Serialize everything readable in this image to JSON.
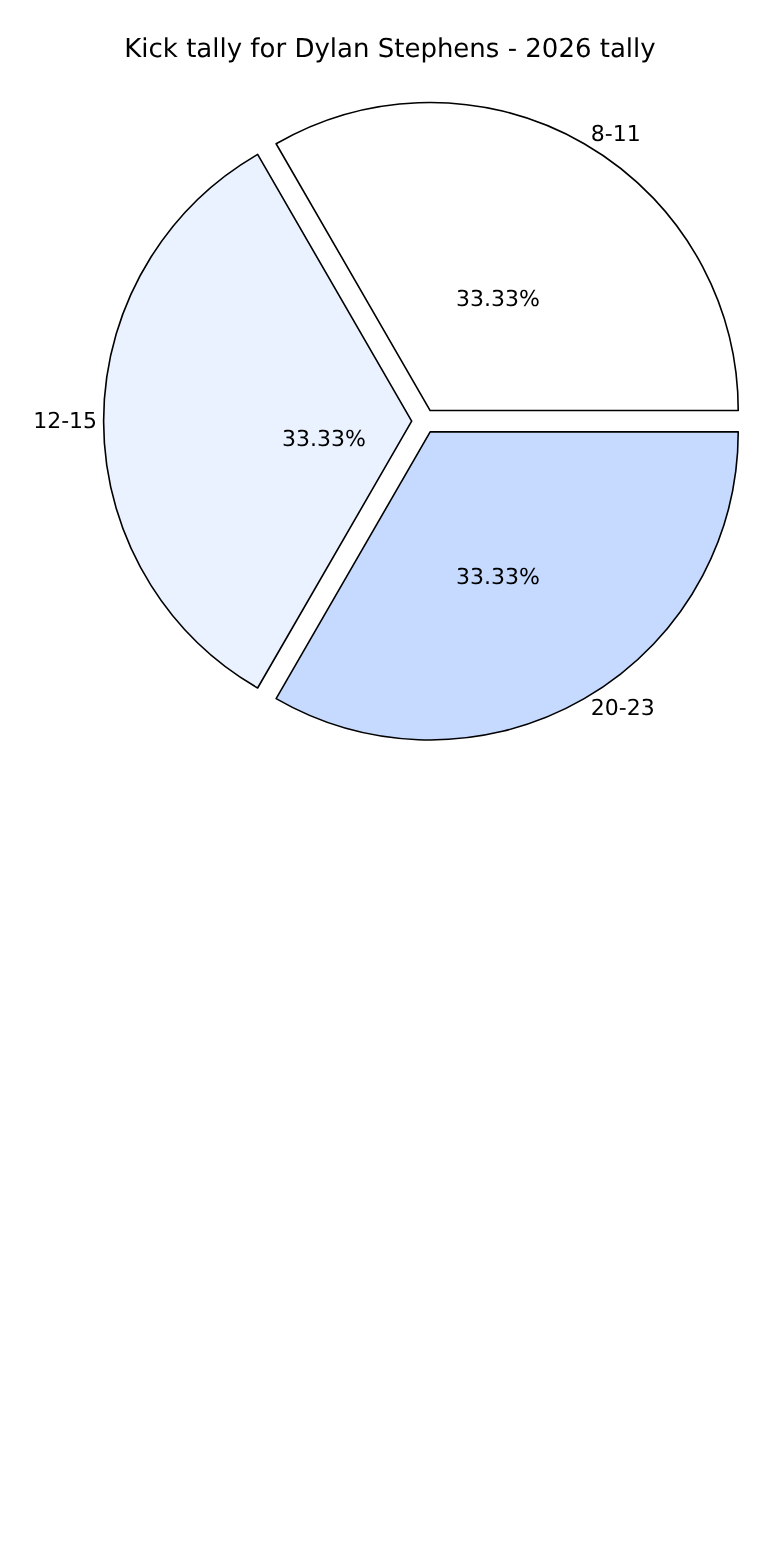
{
  "chart_data": {
    "type": "pie",
    "title": "Kick tally for Dylan Stephens - 2026 tally",
    "categories": [
      "8-11",
      "12-15",
      "20-23"
    ],
    "values": [
      33.33,
      33.33,
      33.33
    ],
    "colors": [
      "#ffffff",
      "#eaf1ff",
      "#c6daff"
    ],
    "value_labels": [
      "33.33%",
      "33.33%",
      "33.33%"
    ],
    "legend": false
  }
}
